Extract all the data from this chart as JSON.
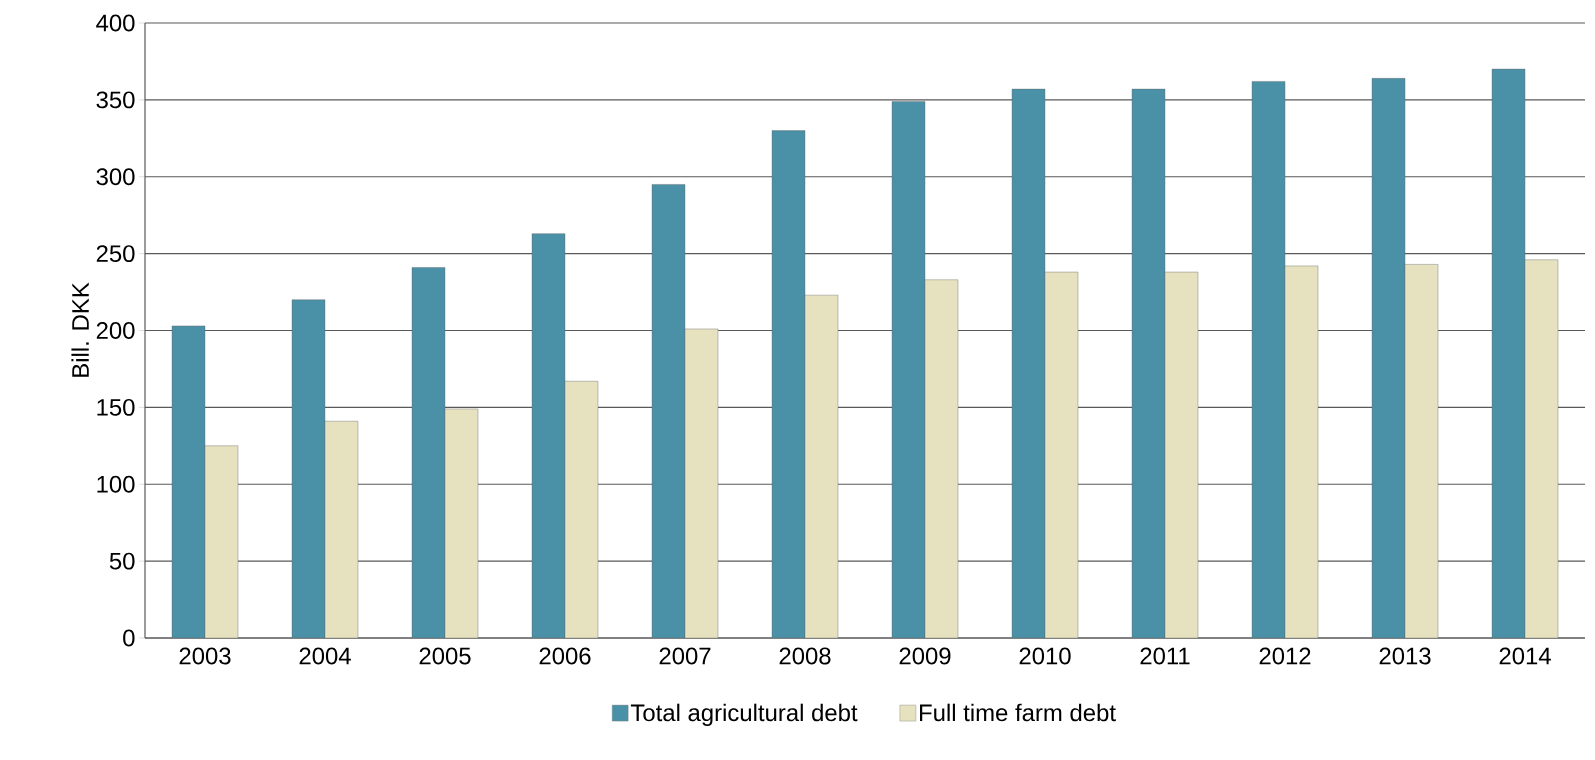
{
  "chart_data": {
    "type": "bar",
    "ylabel": "Bill. DKK",
    "categories": [
      "2003",
      "2004",
      "2005",
      "2006",
      "2007",
      "2008",
      "2009",
      "2010",
      "2011",
      "2012",
      "2013",
      "2014"
    ],
    "series": [
      {
        "name": "Total agricultural debt",
        "color": "#4a90a6",
        "values": [
          203,
          220,
          241,
          263,
          295,
          330,
          349,
          357,
          357,
          362,
          364,
          370
        ]
      },
      {
        "name": "Full time farm debt",
        "color": "#e6e2bf",
        "values": [
          125,
          141,
          149,
          167,
          201,
          223,
          233,
          238,
          238,
          242,
          243,
          246
        ]
      }
    ],
    "ylim": [
      0,
      400
    ],
    "yticks": [
      0,
      50,
      100,
      150,
      200,
      250,
      300,
      350,
      400
    ],
    "grid": "y",
    "legend": "bottom"
  }
}
